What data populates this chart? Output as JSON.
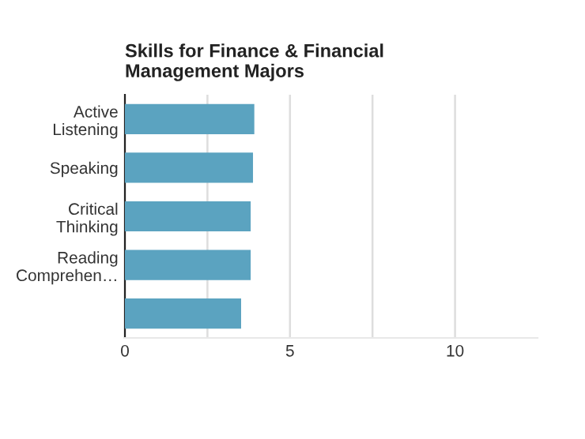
{
  "chart_data": {
    "type": "bar",
    "orientation": "horizontal",
    "title": "Skills for Finance & Financial\nManagement Majors",
    "categories": [
      "Active\nListening",
      "Speaking",
      "Critical\nThinking",
      "Reading\nComprehen…",
      null
    ],
    "values": [
      3.92,
      3.88,
      3.81,
      3.81,
      3.52
    ],
    "color": "#5ba3c0",
    "xlim": [
      0,
      12.5
    ],
    "xticks": [
      0,
      {
        "value": 2.5,
        "label": null
      },
      5,
      {
        "value": 7.5,
        "label": null
      },
      10
    ],
    "grid": "x"
  }
}
